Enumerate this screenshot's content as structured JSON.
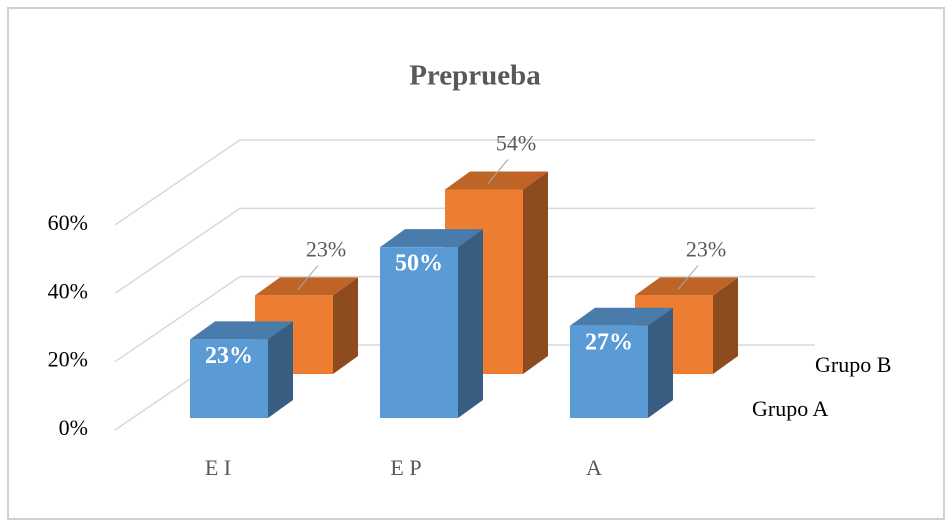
{
  "chart_data": {
    "type": "bar3d",
    "title": "Preprueba",
    "categories": [
      "E I",
      "E P",
      "A"
    ],
    "series": [
      {
        "name": "Grupo A",
        "color": "#5b9bd5",
        "values": [
          23,
          50,
          27
        ],
        "value_labels": [
          "23%",
          "50%",
          "27%"
        ]
      },
      {
        "name": "Grupo B",
        "color": "#ed7d31",
        "values": [
          23,
          54,
          23
        ],
        "value_labels": [
          "23%",
          "54%",
          "23%"
        ]
      }
    ],
    "ylim": [
      0,
      60
    ],
    "yticks": [
      {
        "value": 0,
        "label": "0%"
      },
      {
        "value": 20,
        "label": "20%"
      },
      {
        "value": 40,
        "label": "40%"
      },
      {
        "value": 60,
        "label": "60%"
      }
    ],
    "grid": true
  }
}
